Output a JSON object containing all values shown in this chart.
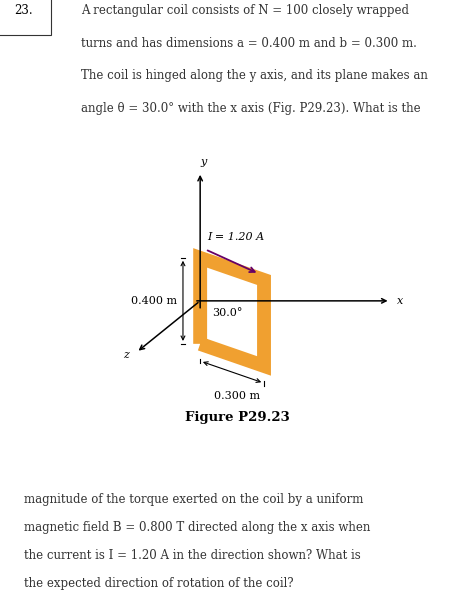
{
  "bg_color": "#ffffff",
  "header_line1": "A rectangular coil consists of N = 100 closely wrapped",
  "header_line2": "turns and has dimensions a = 0.400 m and b = 0.300 m.",
  "header_line3": "The coil is hinged along the y axis, and its plane makes an",
  "header_line4": "angle θ = 30.0° with the x axis (Fig. P29.23). What is the",
  "problem_number": "23.",
  "footer_line1": "magnitude of the torque exerted on the coil by a uniform",
  "footer_line2": "magnetic field B = 0.800 T directed along the x axis when",
  "footer_line3": "the current is I = 1.20 A in the direction shown? What is",
  "footer_line4": "the expected direction of rotation of the coil?",
  "figure_label": "Figure P29.23",
  "coil_color": "#F0A030",
  "coil_linewidth": 10,
  "arrow_color": "#660066",
  "label_a": "0.400 m",
  "label_b": "0.300 m",
  "label_I": "I = 1.20 A",
  "label_angle": "30.0°",
  "label_x": "x",
  "label_y": "y",
  "label_z": "z",
  "text_color": "#333333",
  "font_size_header": 8.5,
  "font_size_diagram": 8.0,
  "font_size_footer": 8.5
}
